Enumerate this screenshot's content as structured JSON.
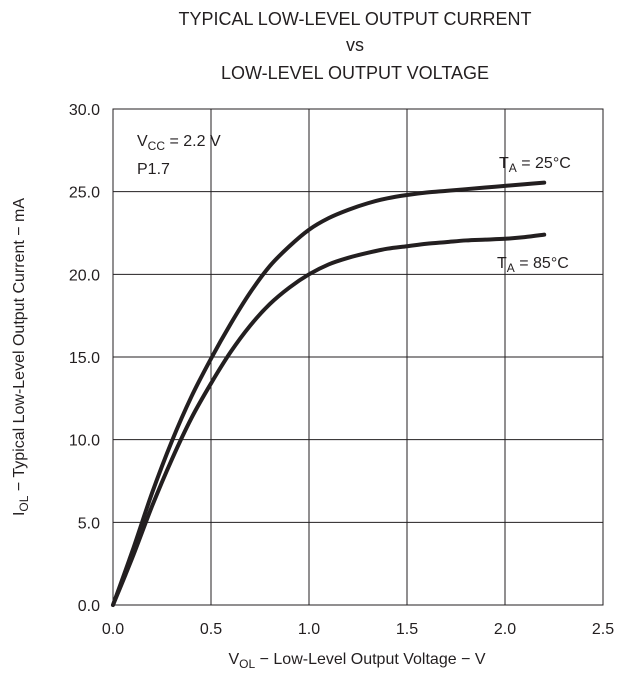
{
  "chart_data": {
    "type": "line",
    "title": [
      "TYPICAL LOW-LEVEL OUTPUT CURRENT",
      "vs",
      "LOW-LEVEL OUTPUT VOLTAGE"
    ],
    "xlabel": {
      "main": "V",
      "sub": "OL",
      "rest": " − Low-Level Output Voltage − V"
    },
    "ylabel": {
      "main": "I",
      "sub": "OL",
      "rest": " − Typical Low-Level Output Current − mA"
    },
    "xlim": [
      0,
      2.5
    ],
    "ylim": [
      0,
      30
    ],
    "x_ticks": [
      "0.0",
      "0.5",
      "1.0",
      "1.5",
      "2.0",
      "2.5"
    ],
    "y_ticks": [
      "0.0",
      "5.0",
      "10.0",
      "15.0",
      "20.0",
      "25.0",
      "30.0"
    ],
    "grid": true,
    "annotations": [
      {
        "main": "V",
        "sub": "CC",
        "rest": " = 2.2 V"
      },
      {
        "main": "P1.7",
        "sub": "",
        "rest": ""
      }
    ],
    "series": [
      {
        "name": {
          "main": "T",
          "sub": "A",
          "rest": " = 25°C"
        },
        "x": [
          0.0,
          0.1,
          0.2,
          0.3,
          0.4,
          0.5,
          0.6,
          0.7,
          0.8,
          0.9,
          1.0,
          1.1,
          1.2,
          1.3,
          1.4,
          1.5,
          1.6,
          1.7,
          1.8,
          1.9,
          2.0,
          2.1,
          2.2
        ],
        "y": [
          0.0,
          3.3,
          6.8,
          9.9,
          12.6,
          14.9,
          17.0,
          18.9,
          20.5,
          21.7,
          22.7,
          23.4,
          23.9,
          24.3,
          24.6,
          24.8,
          24.95,
          25.05,
          25.15,
          25.25,
          25.35,
          25.45,
          25.55
        ]
      },
      {
        "name": {
          "main": "T",
          "sub": "A",
          "rest": " = 85°C"
        },
        "x": [
          0.0,
          0.1,
          0.2,
          0.3,
          0.4,
          0.5,
          0.6,
          0.7,
          0.8,
          0.9,
          1.0,
          1.1,
          1.2,
          1.3,
          1.4,
          1.5,
          1.6,
          1.7,
          1.8,
          1.9,
          2.0,
          2.1,
          2.2
        ],
        "y": [
          0.0,
          2.9,
          6.0,
          8.8,
          11.3,
          13.4,
          15.3,
          16.9,
          18.2,
          19.2,
          20.0,
          20.6,
          21.0,
          21.3,
          21.55,
          21.7,
          21.85,
          21.95,
          22.05,
          22.1,
          22.15,
          22.25,
          22.4
        ]
      }
    ],
    "line_color": "#231f20"
  }
}
